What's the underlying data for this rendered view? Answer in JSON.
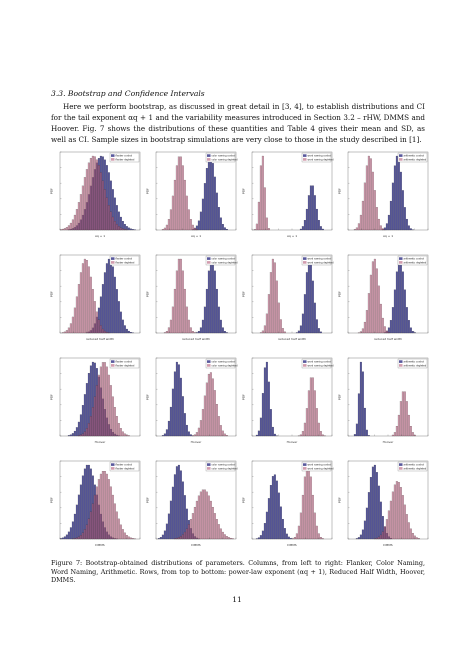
{
  "section": {
    "heading": "3.3.  Bootstrap and Confidence Intervals",
    "paragraph": "Here we perform bootstrap, as discussed in great detail in [3, 4], to establish distributions and CI for the tail exponent αq + 1 and the variability measures introduced in Section 3.2 – rHW, DMMS and Hoover. Fig. 7 shows the distributions of these quantities and Table 4 gives their mean and SD, as well as CI. Sample sizes in bootstrap simulations are very close to those in the study described in [1]."
  },
  "figure": {
    "caption": "Figure 7: Bootstrap-obtained distributions of parameters. Columns, from left to right: Flanker, Color Naming, Word Naming, Arithmetic. Rows, from top to bottom: power-law exponent (αq + 1), Reduced Half Width, Hoover, DMMS.",
    "colors": {
      "series_a": "#3c3c8c",
      "series_b": "#b45a78"
    },
    "rows": [
      {
        "ylabel": "PDF",
        "xlabel": "αq + 1"
      },
      {
        "ylabel": "PDF",
        "xlabel": "reduced half width"
      },
      {
        "ylabel": "PDF",
        "xlabel": "Hoover"
      },
      {
        "ylabel": "PDF",
        "xlabel": "DMMS"
      }
    ],
    "columns": [
      {
        "legend": [
          "flanker control",
          "flanker depleted"
        ]
      },
      {
        "legend": [
          "color naming control",
          "color naming depleted"
        ]
      },
      {
        "legend": [
          "word naming control",
          "word naming depleted"
        ]
      },
      {
        "legend": [
          "arithmetic control",
          "arithmetic depleted"
        ]
      }
    ]
  },
  "chart_data": [
    {
      "type": "bar",
      "panel": "flanker-alpha",
      "series": [
        {
          "mean": 0.52,
          "sd": 0.13
        },
        {
          "mean": 0.42,
          "sd": 0.13
        }
      ]
    },
    {
      "type": "bar",
      "panel": "color-naming-alpha",
      "series": [
        {
          "mean": 0.68,
          "sd": 0.07
        },
        {
          "mean": 0.3,
          "sd": 0.07
        }
      ]
    },
    {
      "type": "bar",
      "panel": "word-naming-alpha",
      "series": [
        {
          "mean": 0.75,
          "sd": 0.05
        },
        {
          "mean": 0.13,
          "sd": 0.03
        }
      ]
    },
    {
      "type": "bar",
      "panel": "arithmetic-alpha",
      "series": [
        {
          "mean": 0.62,
          "sd": 0.06
        },
        {
          "mean": 0.27,
          "sd": 0.06
        }
      ]
    },
    {
      "type": "bar",
      "panel": "flanker-rhw",
      "series": [
        {
          "mean": 0.62,
          "sd": 0.09
        },
        {
          "mean": 0.32,
          "sd": 0.09
        }
      ]
    },
    {
      "type": "bar",
      "panel": "color-naming-rhw",
      "series": [
        {
          "mean": 0.7,
          "sd": 0.06
        },
        {
          "mean": 0.3,
          "sd": 0.06
        }
      ]
    },
    {
      "type": "bar",
      "panel": "word-naming-rhw",
      "series": [
        {
          "mean": 0.72,
          "sd": 0.05
        },
        {
          "mean": 0.27,
          "sd": 0.05
        }
      ]
    },
    {
      "type": "bar",
      "panel": "arithmetic-rhw",
      "series": [
        {
          "mean": 0.65,
          "sd": 0.06
        },
        {
          "mean": 0.33,
          "sd": 0.06
        }
      ]
    },
    {
      "type": "bar",
      "panel": "flanker-hoover",
      "series": [
        {
          "mean": 0.42,
          "sd": 0.1
        },
        {
          "mean": 0.55,
          "sd": 0.1
        }
      ]
    },
    {
      "type": "bar",
      "panel": "color-naming-hoover",
      "series": [
        {
          "mean": 0.27,
          "sd": 0.06
        },
        {
          "mean": 0.68,
          "sd": 0.07
        }
      ]
    },
    {
      "type": "bar",
      "panel": "word-naming-hoover",
      "series": [
        {
          "mean": 0.18,
          "sd": 0.04
        },
        {
          "mean": 0.75,
          "sd": 0.05
        }
      ]
    },
    {
      "type": "bar",
      "panel": "arithmetic-hoover",
      "series": [
        {
          "mean": 0.17,
          "sd": 0.03
        },
        {
          "mean": 0.7,
          "sd": 0.05
        }
      ]
    },
    {
      "type": "bar",
      "panel": "flanker-dmms",
      "series": [
        {
          "mean": 0.35,
          "sd": 0.11
        },
        {
          "mean": 0.55,
          "sd": 0.12
        }
      ]
    },
    {
      "type": "bar",
      "panel": "color-naming-dmms",
      "series": [
        {
          "mean": 0.28,
          "sd": 0.08
        },
        {
          "mean": 0.6,
          "sd": 0.12
        }
      ]
    },
    {
      "type": "bar",
      "panel": "word-naming-dmms",
      "series": [
        {
          "mean": 0.28,
          "sd": 0.07
        },
        {
          "mean": 0.7,
          "sd": 0.06
        }
      ]
    },
    {
      "type": "bar",
      "panel": "arithmetic-dmms",
      "series": [
        {
          "mean": 0.33,
          "sd": 0.07
        },
        {
          "mean": 0.62,
          "sd": 0.09
        }
      ]
    }
  ],
  "page_number": "11"
}
